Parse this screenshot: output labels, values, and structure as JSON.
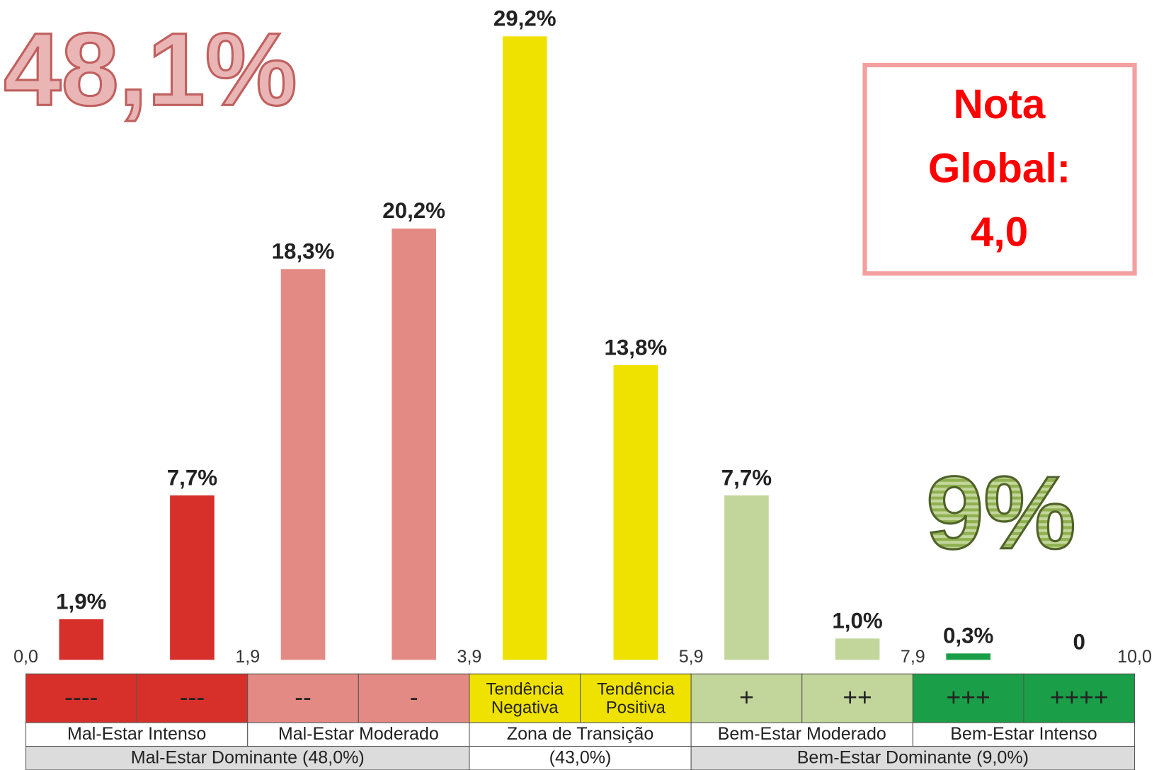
{
  "chart_data": {
    "type": "bar",
    "categories": [
      "----",
      "---",
      "--",
      "-",
      "Tendência Negativa",
      "Tendência Positiva",
      "+",
      "++",
      "+++",
      "++++"
    ],
    "values": [
      1.9,
      7.7,
      18.3,
      20.2,
      29.2,
      13.8,
      7.7,
      1.0,
      0.3,
      0
    ],
    "value_labels": [
      "1,9%",
      "7,7%",
      "18,3%",
      "20,2%",
      "29,2%",
      "13,8%",
      "7,7%",
      "1,0%",
      "0,3%",
      "0"
    ],
    "colors": [
      "#d7302a",
      "#d7302a",
      "#e48a84",
      "#e48a84",
      "#f0e200",
      "#f0e200",
      "#c2d69b",
      "#c2d69b",
      "#1a9e48",
      "#1a9e48"
    ],
    "scale_marks": [
      "0,0",
      "1,9",
      "3,9",
      "5,9",
      "7,9",
      "10,0"
    ],
    "groups": [
      {
        "label": "Mal-Estar Intenso",
        "span": 2
      },
      {
        "label": "Mal-Estar Moderado",
        "span": 2
      },
      {
        "label": "Zona de Transição",
        "span": 2
      },
      {
        "label": "Bem-Estar Moderado",
        "span": 2
      },
      {
        "label": "Bem-Estar Intenso",
        "span": 2
      }
    ],
    "dominance": [
      {
        "label": "Mal-Estar Dominante (48,0%)",
        "span": 4
      },
      {
        "label": "(43,0%)",
        "span": 2
      },
      {
        "label": "Bem-Estar Dominante (9,0%)",
        "span": 4
      }
    ],
    "annotations": {
      "left": "48,1%",
      "right": "9%",
      "box": [
        "Nota",
        "Global:",
        "4,0"
      ]
    }
  }
}
